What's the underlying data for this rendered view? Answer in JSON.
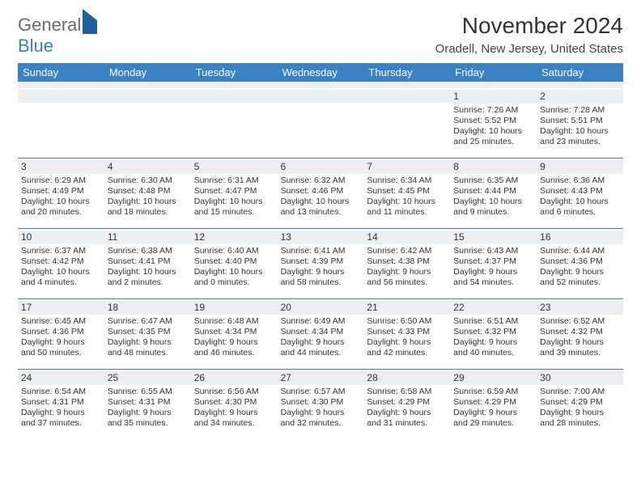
{
  "logo": {
    "part1": "General",
    "part2": "Blue"
  },
  "title": "November 2024",
  "location": "Oradell, New Jersey, United States",
  "colors": {
    "header_bg": "#3a82c4",
    "header_text": "#ffffff",
    "daynum_bg": "#eceff1",
    "divider": "#3a7fc0",
    "text": "#333333",
    "logo_gray": "#6b6b6b",
    "logo_blue": "#3a7fc0"
  },
  "weekdays": [
    "Sunday",
    "Monday",
    "Tuesday",
    "Wednesday",
    "Thursday",
    "Friday",
    "Saturday"
  ],
  "weeks": [
    [
      {
        "day": "",
        "sunrise": "",
        "sunset": "",
        "daylight": ""
      },
      {
        "day": "",
        "sunrise": "",
        "sunset": "",
        "daylight": ""
      },
      {
        "day": "",
        "sunrise": "",
        "sunset": "",
        "daylight": ""
      },
      {
        "day": "",
        "sunrise": "",
        "sunset": "",
        "daylight": ""
      },
      {
        "day": "",
        "sunrise": "",
        "sunset": "",
        "daylight": ""
      },
      {
        "day": "1",
        "sunrise": "Sunrise: 7:26 AM",
        "sunset": "Sunset: 5:52 PM",
        "daylight": "Daylight: 10 hours and 25 minutes."
      },
      {
        "day": "2",
        "sunrise": "Sunrise: 7:28 AM",
        "sunset": "Sunset: 5:51 PM",
        "daylight": "Daylight: 10 hours and 23 minutes."
      }
    ],
    [
      {
        "day": "3",
        "sunrise": "Sunrise: 6:29 AM",
        "sunset": "Sunset: 4:49 PM",
        "daylight": "Daylight: 10 hours and 20 minutes."
      },
      {
        "day": "4",
        "sunrise": "Sunrise: 6:30 AM",
        "sunset": "Sunset: 4:48 PM",
        "daylight": "Daylight: 10 hours and 18 minutes."
      },
      {
        "day": "5",
        "sunrise": "Sunrise: 6:31 AM",
        "sunset": "Sunset: 4:47 PM",
        "daylight": "Daylight: 10 hours and 15 minutes."
      },
      {
        "day": "6",
        "sunrise": "Sunrise: 6:32 AM",
        "sunset": "Sunset: 4:46 PM",
        "daylight": "Daylight: 10 hours and 13 minutes."
      },
      {
        "day": "7",
        "sunrise": "Sunrise: 6:34 AM",
        "sunset": "Sunset: 4:45 PM",
        "daylight": "Daylight: 10 hours and 11 minutes."
      },
      {
        "day": "8",
        "sunrise": "Sunrise: 6:35 AM",
        "sunset": "Sunset: 4:44 PM",
        "daylight": "Daylight: 10 hours and 9 minutes."
      },
      {
        "day": "9",
        "sunrise": "Sunrise: 6:36 AM",
        "sunset": "Sunset: 4:43 PM",
        "daylight": "Daylight: 10 hours and 6 minutes."
      }
    ],
    [
      {
        "day": "10",
        "sunrise": "Sunrise: 6:37 AM",
        "sunset": "Sunset: 4:42 PM",
        "daylight": "Daylight: 10 hours and 4 minutes."
      },
      {
        "day": "11",
        "sunrise": "Sunrise: 6:38 AM",
        "sunset": "Sunset: 4:41 PM",
        "daylight": "Daylight: 10 hours and 2 minutes."
      },
      {
        "day": "12",
        "sunrise": "Sunrise: 6:40 AM",
        "sunset": "Sunset: 4:40 PM",
        "daylight": "Daylight: 10 hours and 0 minutes."
      },
      {
        "day": "13",
        "sunrise": "Sunrise: 6:41 AM",
        "sunset": "Sunset: 4:39 PM",
        "daylight": "Daylight: 9 hours and 58 minutes."
      },
      {
        "day": "14",
        "sunrise": "Sunrise: 6:42 AM",
        "sunset": "Sunset: 4:38 PM",
        "daylight": "Daylight: 9 hours and 56 minutes."
      },
      {
        "day": "15",
        "sunrise": "Sunrise: 6:43 AM",
        "sunset": "Sunset: 4:37 PM",
        "daylight": "Daylight: 9 hours and 54 minutes."
      },
      {
        "day": "16",
        "sunrise": "Sunrise: 6:44 AM",
        "sunset": "Sunset: 4:36 PM",
        "daylight": "Daylight: 9 hours and 52 minutes."
      }
    ],
    [
      {
        "day": "17",
        "sunrise": "Sunrise: 6:45 AM",
        "sunset": "Sunset: 4:36 PM",
        "daylight": "Daylight: 9 hours and 50 minutes."
      },
      {
        "day": "18",
        "sunrise": "Sunrise: 6:47 AM",
        "sunset": "Sunset: 4:35 PM",
        "daylight": "Daylight: 9 hours and 48 minutes."
      },
      {
        "day": "19",
        "sunrise": "Sunrise: 6:48 AM",
        "sunset": "Sunset: 4:34 PM",
        "daylight": "Daylight: 9 hours and 46 minutes."
      },
      {
        "day": "20",
        "sunrise": "Sunrise: 6:49 AM",
        "sunset": "Sunset: 4:34 PM",
        "daylight": "Daylight: 9 hours and 44 minutes."
      },
      {
        "day": "21",
        "sunrise": "Sunrise: 6:50 AM",
        "sunset": "Sunset: 4:33 PM",
        "daylight": "Daylight: 9 hours and 42 minutes."
      },
      {
        "day": "22",
        "sunrise": "Sunrise: 6:51 AM",
        "sunset": "Sunset: 4:32 PM",
        "daylight": "Daylight: 9 hours and 40 minutes."
      },
      {
        "day": "23",
        "sunrise": "Sunrise: 6:52 AM",
        "sunset": "Sunset: 4:32 PM",
        "daylight": "Daylight: 9 hours and 39 minutes."
      }
    ],
    [
      {
        "day": "24",
        "sunrise": "Sunrise: 6:54 AM",
        "sunset": "Sunset: 4:31 PM",
        "daylight": "Daylight: 9 hours and 37 minutes."
      },
      {
        "day": "25",
        "sunrise": "Sunrise: 6:55 AM",
        "sunset": "Sunset: 4:31 PM",
        "daylight": "Daylight: 9 hours and 35 minutes."
      },
      {
        "day": "26",
        "sunrise": "Sunrise: 6:56 AM",
        "sunset": "Sunset: 4:30 PM",
        "daylight": "Daylight: 9 hours and 34 minutes."
      },
      {
        "day": "27",
        "sunrise": "Sunrise: 6:57 AM",
        "sunset": "Sunset: 4:30 PM",
        "daylight": "Daylight: 9 hours and 32 minutes."
      },
      {
        "day": "28",
        "sunrise": "Sunrise: 6:58 AM",
        "sunset": "Sunset: 4:29 PM",
        "daylight": "Daylight: 9 hours and 31 minutes."
      },
      {
        "day": "29",
        "sunrise": "Sunrise: 6:59 AM",
        "sunset": "Sunset: 4:29 PM",
        "daylight": "Daylight: 9 hours and 29 minutes."
      },
      {
        "day": "30",
        "sunrise": "Sunrise: 7:00 AM",
        "sunset": "Sunset: 4:29 PM",
        "daylight": "Daylight: 9 hours and 28 minutes."
      }
    ]
  ]
}
